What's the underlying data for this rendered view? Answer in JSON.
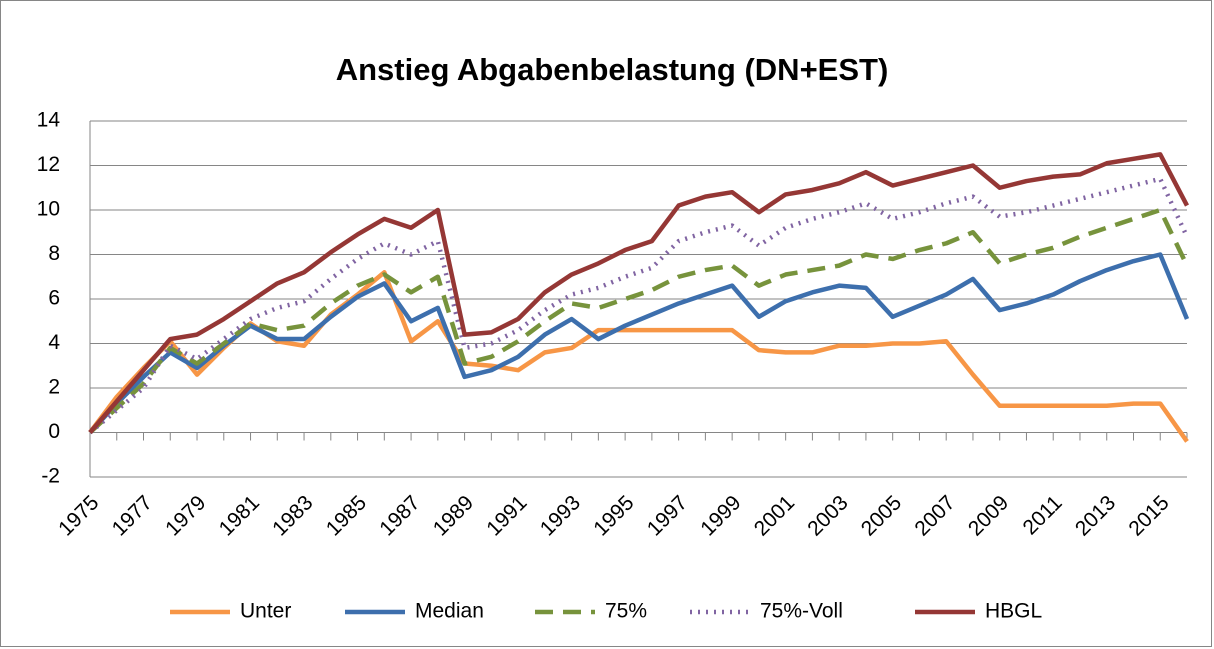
{
  "chart_data": {
    "type": "line",
    "title": "Anstieg Abgabenbelastung (DN+EST)",
    "categories": [
      "1975",
      null,
      "1977",
      null,
      "1979",
      null,
      "1981",
      null,
      "1983",
      null,
      "1985",
      null,
      "1987",
      null,
      "1989",
      null,
      "1991",
      null,
      "1993",
      null,
      "1995",
      null,
      "1997",
      null,
      "1999",
      null,
      "2001",
      null,
      "2003",
      null,
      "2005",
      null,
      "2007",
      null,
      "2009",
      null,
      "2011",
      null,
      "2013",
      null,
      "2015",
      null
    ],
    "ylim": [
      -2,
      14
    ],
    "yticks": [
      -2,
      0,
      2,
      4,
      6,
      8,
      10,
      12,
      14
    ],
    "grid": true,
    "legend": "bottom",
    "series": [
      {
        "name": "Unter",
        "color": "#f79646",
        "style": "solid",
        "values": [
          0,
          1.6,
          2.9,
          4.1,
          2.6,
          3.8,
          4.9,
          4.1,
          3.9,
          5.3,
          6.2,
          7.2,
          4.1,
          5.0,
          3.1,
          3.0,
          2.8,
          3.6,
          3.8,
          4.6,
          4.6,
          4.6,
          4.6,
          4.6,
          4.6,
          3.7,
          3.6,
          3.6,
          3.9,
          3.9,
          4.0,
          4.0,
          4.1,
          2.6,
          1.2,
          1.2,
          1.2,
          1.2,
          1.2,
          1.3,
          1.3,
          -0.4
        ]
      },
      {
        "name": "Median",
        "color": "#3d6fad",
        "style": "solid",
        "values": [
          0,
          1.3,
          2.5,
          3.6,
          2.9,
          3.9,
          4.8,
          4.2,
          4.2,
          5.2,
          6.1,
          6.7,
          5.0,
          5.6,
          2.5,
          2.8,
          3.4,
          4.4,
          5.1,
          4.2,
          4.8,
          5.3,
          5.8,
          6.2,
          6.6,
          5.2,
          5.9,
          6.3,
          6.6,
          6.5,
          5.2,
          5.7,
          6.2,
          6.9,
          5.5,
          5.8,
          6.2,
          6.8,
          7.3,
          7.7,
          8.0,
          5.1
        ]
      },
      {
        "name": "75%",
        "color": "#77933c",
        "style": "dash",
        "values": [
          0,
          1.1,
          2.2,
          3.8,
          3.1,
          4.0,
          4.9,
          4.6,
          4.8,
          5.8,
          6.6,
          7.1,
          6.3,
          7.0,
          3.1,
          3.4,
          4.1,
          5.0,
          5.8,
          5.6,
          6.0,
          6.4,
          7.0,
          7.3,
          7.5,
          6.6,
          7.1,
          7.3,
          7.5,
          8.0,
          7.8,
          8.2,
          8.5,
          9.0,
          7.6,
          8.0,
          8.3,
          8.8,
          9.2,
          9.6,
          10.0,
          7.5
        ]
      },
      {
        "name": "75%-Voll",
        "color": "#8064a2",
        "style": "dot",
        "values": [
          0,
          1.0,
          2.0,
          3.9,
          3.3,
          4.2,
          5.1,
          5.6,
          5.9,
          6.9,
          7.8,
          8.5,
          8.0,
          8.6,
          3.8,
          4.0,
          4.6,
          5.5,
          6.2,
          6.5,
          7.0,
          7.4,
          8.6,
          9.0,
          9.3,
          8.4,
          9.2,
          9.6,
          9.9,
          10.3,
          9.6,
          9.9,
          10.3,
          10.6,
          9.7,
          9.9,
          10.2,
          10.5,
          10.8,
          11.1,
          11.4,
          8.8
        ]
      },
      {
        "name": "HBGL",
        "color": "#953735",
        "style": "solid",
        "values": [
          0,
          1.4,
          2.8,
          4.2,
          4.4,
          5.1,
          5.9,
          6.7,
          7.2,
          8.1,
          8.9,
          9.6,
          9.2,
          10.0,
          4.4,
          4.5,
          5.1,
          6.3,
          7.1,
          7.6,
          8.2,
          8.6,
          10.2,
          10.6,
          10.8,
          9.9,
          10.7,
          10.9,
          11.2,
          11.7,
          11.1,
          11.4,
          11.7,
          12.0,
          11.0,
          11.3,
          11.5,
          11.6,
          12.1,
          12.3,
          12.5,
          10.2
        ]
      }
    ]
  }
}
